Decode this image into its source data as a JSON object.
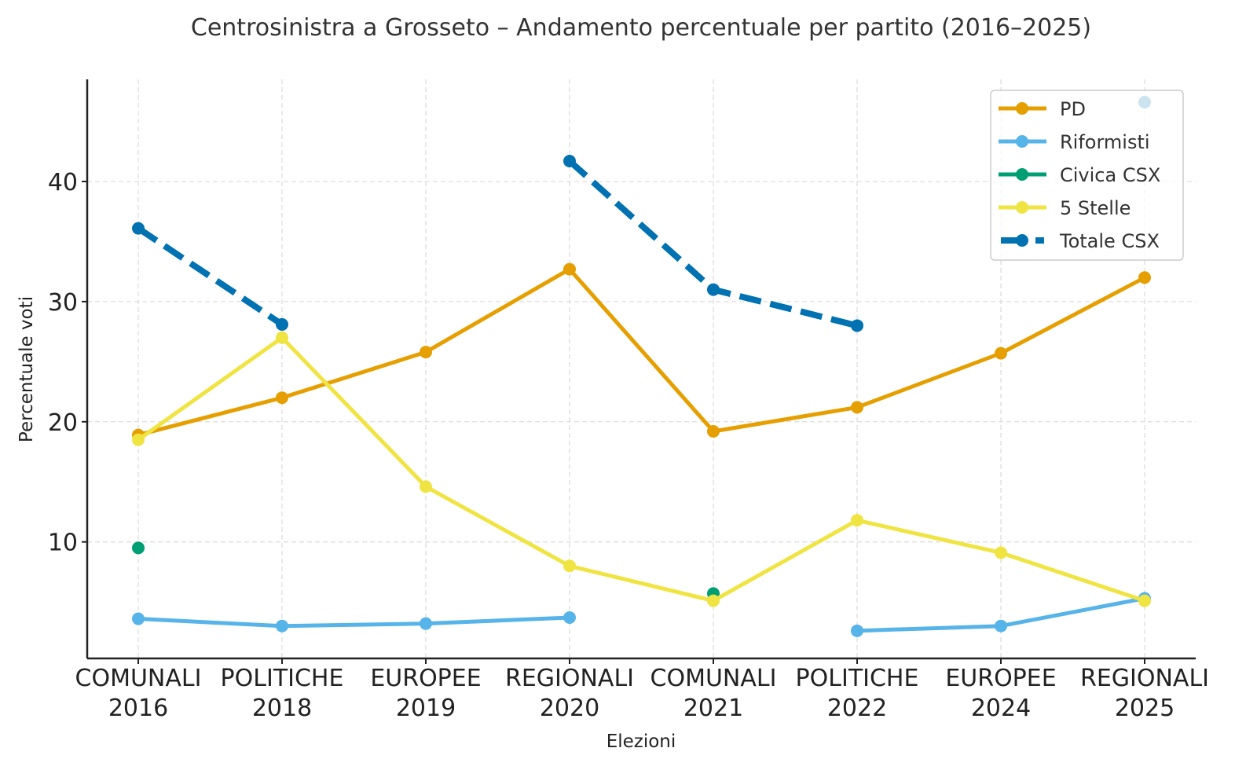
{
  "chart_data": {
    "type": "line",
    "title": "Centrosinistra a Grosseto – Andamento percentuale per partito (2016–2025)",
    "xlabel": "Elezioni",
    "ylabel": "Percentuale voti",
    "categories": [
      [
        "COMUNALI",
        "2016"
      ],
      [
        "POLITICHE",
        "2018"
      ],
      [
        "EUROPEE",
        "2019"
      ],
      [
        "REGIONALI",
        "2020"
      ],
      [
        "COMUNALI",
        "2021"
      ],
      [
        "POLITICHE",
        "2022"
      ],
      [
        "EUROPEE",
        "2024"
      ],
      [
        "REGIONALI",
        "2025"
      ]
    ],
    "ylim": [
      0.3,
      48.5
    ],
    "yticks": [
      10,
      20,
      30,
      40
    ],
    "grid": true,
    "legend_position": "top-right",
    "series": [
      {
        "name": "PD",
        "color": "#E69F00",
        "style": "solid",
        "values": [
          18.9,
          22.0,
          25.8,
          32.7,
          19.2,
          21.2,
          25.7,
          32.0
        ]
      },
      {
        "name": "Riformisti",
        "color": "#56B4E9",
        "style": "solid",
        "values": [
          3.6,
          3.0,
          3.2,
          3.7,
          null,
          2.6,
          3.0,
          5.3
        ]
      },
      {
        "name": "Civica CSX",
        "color": "#009E73",
        "style": "solid",
        "values": [
          9.5,
          null,
          null,
          null,
          5.7,
          null,
          null,
          null
        ]
      },
      {
        "name": "5 Stelle",
        "color": "#F0E442",
        "style": "solid",
        "values": [
          18.5,
          27.0,
          14.6,
          8.0,
          5.1,
          11.8,
          9.1,
          5.1
        ]
      },
      {
        "name": "Totale CSX",
        "color": "#0072B2",
        "style": "dashed",
        "values": [
          36.1,
          28.1,
          null,
          41.7,
          31.0,
          28.0,
          null,
          46.6
        ]
      }
    ]
  }
}
